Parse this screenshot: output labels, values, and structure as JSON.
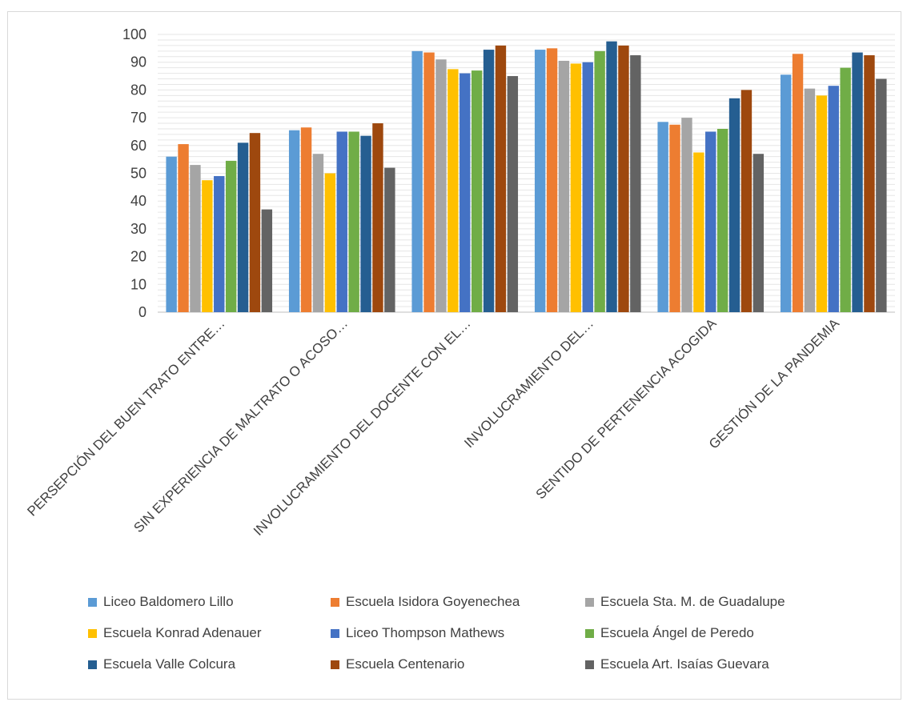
{
  "chart_data": {
    "type": "bar",
    "title": "",
    "xlabel": "",
    "ylabel": "",
    "ylim": [
      0,
      100
    ],
    "y_ticks": [
      "0",
      "10",
      "20",
      "30",
      "40",
      "50",
      "60",
      "70",
      "80",
      "90",
      "100"
    ],
    "grid": true,
    "legend_position": "bottom",
    "categories": [
      "PERSEPCIÓN DEL BUEN TRATO ENTRE…",
      "SIN EXPERIENCIA DE MALTRATO O ACOSO…",
      "INVOLUCRAMIENTO DEL DOCENTE CON EL…",
      "INVOLUCRAMIENTO DEL…",
      "SENTIDO DE PERTENENCIA ACOGIDA",
      "GESTIÓN DE LA PANDEMIA"
    ],
    "series": [
      {
        "name": "Liceo Baldomero Lillo",
        "color": "#5b9bd5",
        "values": [
          56,
          65.5,
          94,
          94.5,
          68.5,
          85.5
        ]
      },
      {
        "name": "Escuela Isidora Goyenechea",
        "color": "#ed7d31",
        "values": [
          60.5,
          66.5,
          93.5,
          95,
          67.5,
          93
        ]
      },
      {
        "name": "Escuela Sta. M. de Guadalupe",
        "color": "#a5a5a5",
        "values": [
          53,
          57,
          91,
          90.5,
          70,
          80.5
        ]
      },
      {
        "name": "Escuela Konrad Adenauer",
        "color": "#ffc000",
        "values": [
          47.5,
          50,
          87.5,
          89.5,
          57.5,
          78
        ]
      },
      {
        "name": "Liceo Thompson Mathews",
        "color": "#4472c4",
        "values": [
          49,
          65,
          86,
          90,
          65,
          81.5
        ]
      },
      {
        "name": "Escuela Ángel de Peredo",
        "color": "#70ad47",
        "values": [
          54.5,
          65,
          87,
          94,
          66,
          88
        ]
      },
      {
        "name": "Escuela Valle Colcura",
        "color": "#255e91",
        "values": [
          61,
          63.5,
          94.5,
          97.5,
          77,
          93.5
        ]
      },
      {
        "name": "Escuela Centenario",
        "color": "#9e480e",
        "values": [
          64.5,
          68,
          96,
          96,
          80,
          92.5
        ]
      },
      {
        "name": "Escuela Art. Isaías Guevara",
        "color": "#636363",
        "values": [
          37,
          52,
          85,
          92.5,
          57,
          84
        ]
      }
    ]
  }
}
